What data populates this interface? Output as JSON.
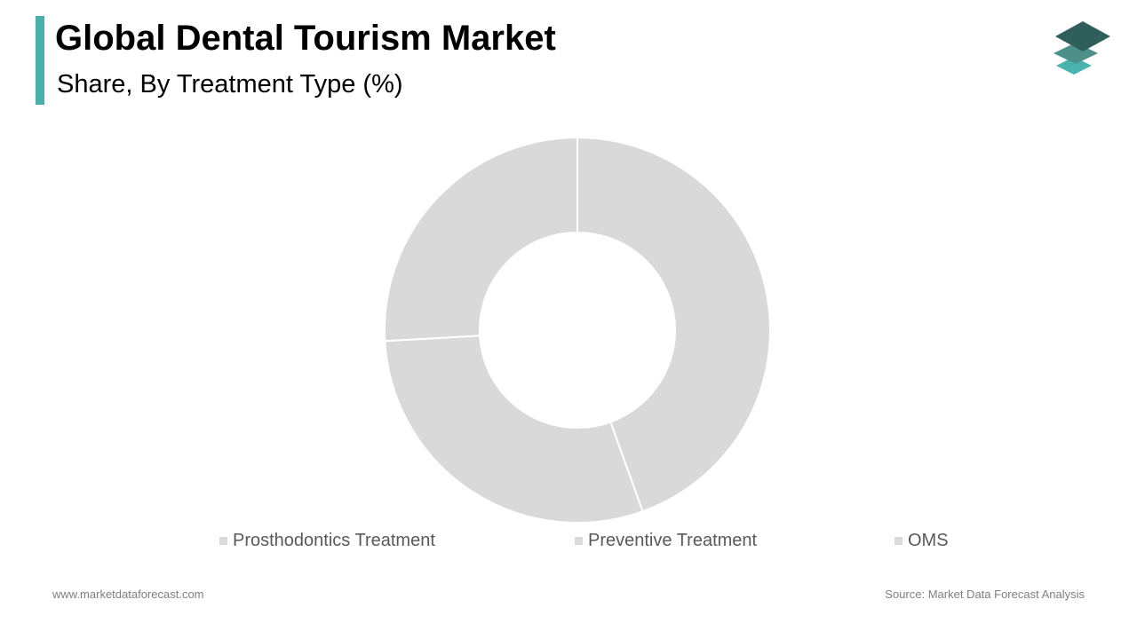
{
  "header": {
    "title": "Global Dental Tourism Market",
    "subtitle": "Share, By Treatment Type (%)"
  },
  "colors": {
    "accent": "#4aaea9",
    "slice": "#d9d9d9",
    "separator": "#ffffff",
    "logo_dark": "#2f5e5b",
    "logo_mid": "#4f8f8a",
    "logo_light": "#49b3ad"
  },
  "logo": {
    "icon": "stacked-layers-icon"
  },
  "chart_data": {
    "type": "pie",
    "variant": "donut",
    "categories": [
      "Prosthodontics Treatment",
      "Preventive Treatment",
      "OMS"
    ],
    "values": [
      44.5,
      29.6,
      25.9
    ],
    "unit": "%",
    "legend_position": "bottom",
    "data_labels": false
  },
  "footer": {
    "website": "www.marketdataforecast.com",
    "source": "Source: Market Data Forecast Analysis"
  }
}
